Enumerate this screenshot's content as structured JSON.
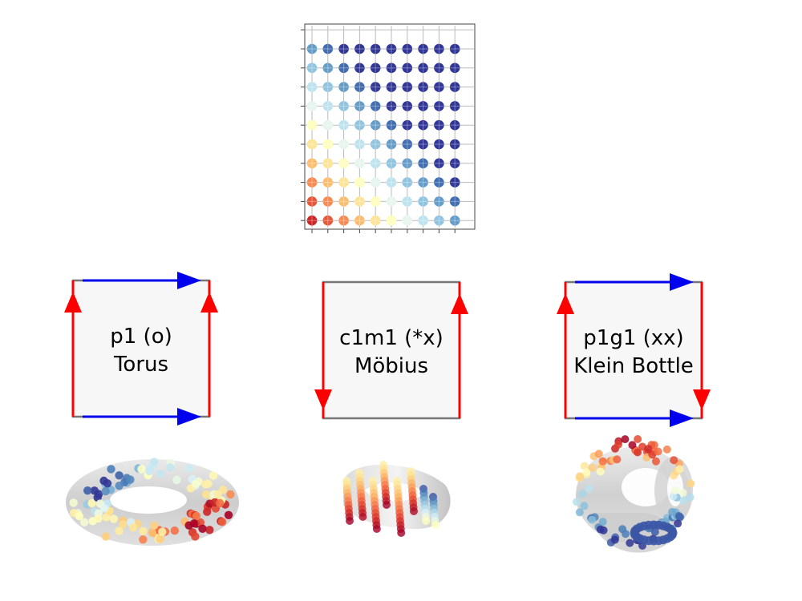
{
  "grid": {
    "rows": 10,
    "cols": 10,
    "colormap": "RdYlBu"
  },
  "panels": [
    {
      "id": "torus",
      "line1": "p1 (o)",
      "line2": "Torus",
      "left_edge": "up",
      "right_edge": "up",
      "top_edge": "right",
      "bottom_edge": "right"
    },
    {
      "id": "mobius",
      "line1": "c1m1 (*x)",
      "line2": "Möbius",
      "left_edge": "down",
      "right_edge": "up",
      "top_edge": "none",
      "bottom_edge": "none"
    },
    {
      "id": "klein",
      "line1": "p1g1 (xx)",
      "line2": "Klein Bottle",
      "left_edge": "up",
      "right_edge": "down",
      "top_edge": "right",
      "bottom_edge": "right"
    }
  ],
  "colors": {
    "red_edge": "#ff0000",
    "blue_edge": "#0000ee",
    "frame": "#777777",
    "panel_fill": "#f7f7f7",
    "surface": "#cfcfcf"
  }
}
